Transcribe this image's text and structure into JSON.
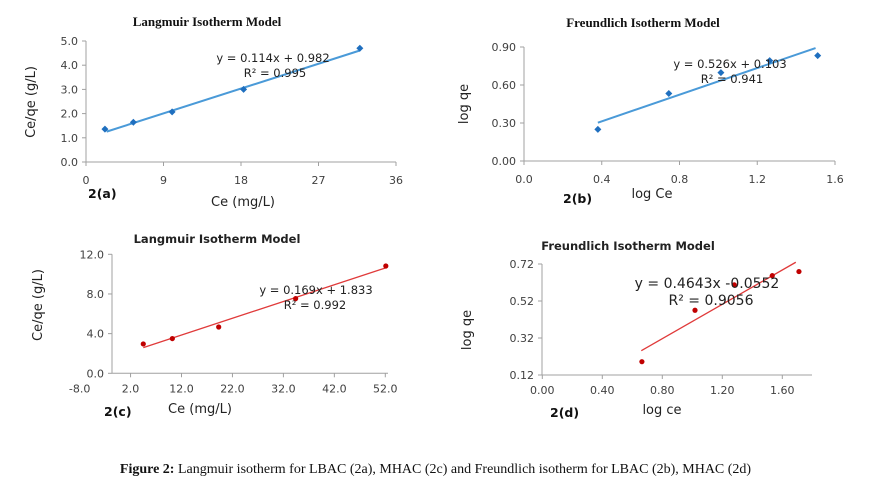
{
  "caption": {
    "label": "Figure 2:",
    "text": " Langmuir isotherm for LBAC (2a), MHAC (2c) and Freundlich isotherm for LBAC (2b), MHAC (2d)"
  },
  "chart_data": [
    {
      "id": "2a",
      "panel_label": "2(a)",
      "type": "scatter",
      "title": "Langmuir Isotherm Model",
      "xlabel": "Ce (mg/L)",
      "ylabel": "Ce/qe (g/L)",
      "xlim": [
        0,
        36
      ],
      "ylim": [
        0,
        5
      ],
      "xticks": [
        "0",
        "9",
        "18",
        "27",
        "36"
      ],
      "yticks": [
        "0.0",
        "1.0",
        "2.0",
        "3.0",
        "4.0",
        "5.0"
      ],
      "x": [
        2.2,
        5.5,
        10.0,
        18.3,
        31.8
      ],
      "y": [
        1.36,
        1.64,
        2.07,
        3.0,
        4.7
      ],
      "trendline": {
        "slope": 0.114,
        "intercept": 0.982,
        "equation": "y = 0.114x + 0.982",
        "r2": "R² = 0.995"
      },
      "color": "#1f6fbf",
      "line_color": "#4a9ad8",
      "grid": false
    },
    {
      "id": "2b",
      "panel_label": "2(b)",
      "type": "scatter",
      "title": "Freundlich Isotherm Model",
      "xlabel": "log Ce",
      "ylabel": "log qe",
      "xlim": [
        0,
        1.6
      ],
      "ylim": [
        0,
        0.9
      ],
      "xticks": [
        "0.0",
        "0.4",
        "0.8",
        "1.2",
        "1.6"
      ],
      "yticks": [
        "0.00",
        "0.30",
        "0.60",
        "0.90"
      ],
      "x": [
        0.38,
        0.745,
        1.013,
        1.264,
        1.511
      ],
      "y": [
        0.25,
        0.533,
        0.698,
        0.792,
        0.832
      ],
      "trendline": {
        "slope": 0.526,
        "intercept": 0.103,
        "equation": "y = 0.526x + 0.103",
        "r2": "R² = 0.941"
      },
      "color": "#1f6fbf",
      "line_color": "#4a9ad8",
      "grid": false
    },
    {
      "id": "2c",
      "panel_label": "2(c)",
      "type": "scatter",
      "title": "Langmuir Isotherm Model",
      "xlabel": "Ce (mg/L)",
      "ylabel": "Ce/qe (g/L)",
      "xlim": [
        -8,
        52
      ],
      "ylim": [
        0,
        12
      ],
      "xticks": [
        "-8.0",
        "2.0",
        "12.0",
        "22.0",
        "32.0",
        "42.0",
        "52.0"
      ],
      "yticks": [
        "0.0",
        "4.0",
        "8.0",
        "12.0"
      ],
      "x": [
        4.5,
        10.2,
        19.3,
        34.4,
        52.1
      ],
      "y": [
        2.96,
        3.5,
        4.67,
        7.53,
        10.82
      ],
      "trendline": {
        "slope": 0.169,
        "intercept": 1.833,
        "equation": "y = 0.169x + 1.833",
        "r2": "R² = 0.992"
      },
      "color": "#c00000",
      "line_color": "#e03a3a",
      "grid": false
    },
    {
      "id": "2d",
      "panel_label": "2(d)",
      "type": "scatter",
      "title": "Freundlich Isotherm Model",
      "xlabel": "log ce",
      "ylabel": "log qe",
      "xlim": [
        0,
        1.8
      ],
      "ylim": [
        0.12,
        0.72
      ],
      "xticks": [
        "0.00",
        "0.40",
        "0.80",
        "1.20",
        "1.60"
      ],
      "yticks": [
        "0.12",
        "0.32",
        "0.52",
        "0.72"
      ],
      "x": [
        0.664,
        1.018,
        1.28,
        1.533,
        1.711
      ],
      "y": [
        0.192,
        0.47,
        0.607,
        0.657,
        0.679
      ],
      "trendline": {
        "slope": 0.4643,
        "intercept": -0.0552,
        "equation": "y = 0.4643x  -0.0552",
        "r2": "R² = 0.9056"
      },
      "color": "#c00000",
      "line_color": "#e03a3a",
      "grid": false
    }
  ]
}
